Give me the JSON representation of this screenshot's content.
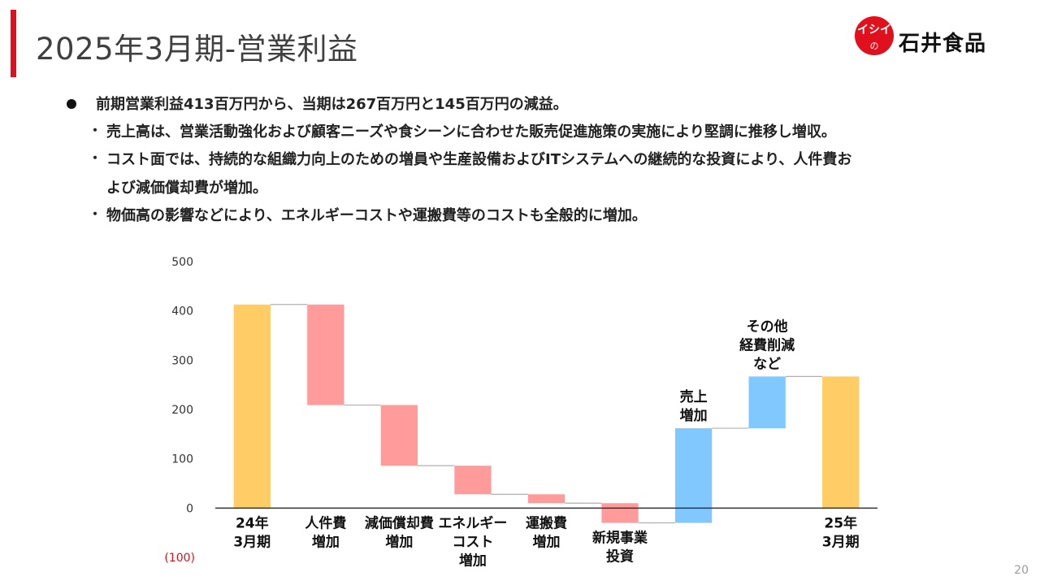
{
  "slide": {
    "title": "2025年3月期-営業利益",
    "page_number": "20",
    "accent_color": "#e0101d"
  },
  "logo": {
    "circle_text": "イシイの",
    "wordmark": "石井食品",
    "color": "#e0101d"
  },
  "bullets": {
    "main": "前期営業利益413百万円から、当期は267百万円と145百万円の減益。",
    "sub": [
      "売上高は、営業活動強化および顧客ニーズや食シーンに合わせた販売促進施策の実施により堅調に推移し増収。",
      "コスト面では、持続的な組織力向上のための増員や生産設備およびITシステムへの継続的な投資により、人件費お",
      "物価高の影響などにより、エネルギーコストや運搬費等のコストも全般的に増加。"
    ],
    "sub_cont": "よび減価償却費が増加。"
  },
  "chart_data": {
    "type": "waterfall",
    "ylim": [
      -100,
      500
    ],
    "yticks": [
      {
        "value": 500,
        "label": "500"
      },
      {
        "value": 400,
        "label": "400"
      },
      {
        "value": 300,
        "label": "300"
      },
      {
        "value": 200,
        "label": "200"
      },
      {
        "value": 100,
        "label": "100"
      },
      {
        "value": 0,
        "label": "0"
      },
      {
        "value": -100,
        "label": "(100)"
      }
    ],
    "colors": {
      "total": "#ffcc66",
      "decrease": "#ff9b9b",
      "increase": "#80c8ff",
      "connector": "#b0b0b0",
      "axis": "#333333"
    },
    "bars": [
      {
        "label": [
          "24年",
          "3月期"
        ],
        "kind": "total",
        "start": 0,
        "end": 413,
        "label_pos": "below"
      },
      {
        "label": [
          "人件費",
          "増加"
        ],
        "kind": "decrease",
        "start": 413,
        "end": 209,
        "label_pos": "below"
      },
      {
        "label": [
          "減価償却費",
          "増加"
        ],
        "kind": "decrease",
        "start": 209,
        "end": 86,
        "label_pos": "below"
      },
      {
        "label": [
          "エネルギー",
          "コスト",
          "増加"
        ],
        "kind": "decrease",
        "start": 86,
        "end": 28,
        "label_pos": "below"
      },
      {
        "label": [
          "運搬費",
          "増加"
        ],
        "kind": "decrease",
        "start": 28,
        "end": 10,
        "label_pos": "below"
      },
      {
        "label": [
          "新規事業",
          "投資"
        ],
        "kind": "decrease",
        "start": 10,
        "end": -30,
        "label_pos": "below"
      },
      {
        "label": [
          "売上",
          "増加"
        ],
        "kind": "increase",
        "start": -30,
        "end": 162,
        "label_pos": "above"
      },
      {
        "label": [
          "その他",
          "経費削減",
          "など"
        ],
        "kind": "increase",
        "start": 162,
        "end": 267,
        "label_pos": "above"
      },
      {
        "label": [
          "25年",
          "3月期"
        ],
        "kind": "total",
        "start": 0,
        "end": 267,
        "label_pos": "below"
      }
    ]
  }
}
